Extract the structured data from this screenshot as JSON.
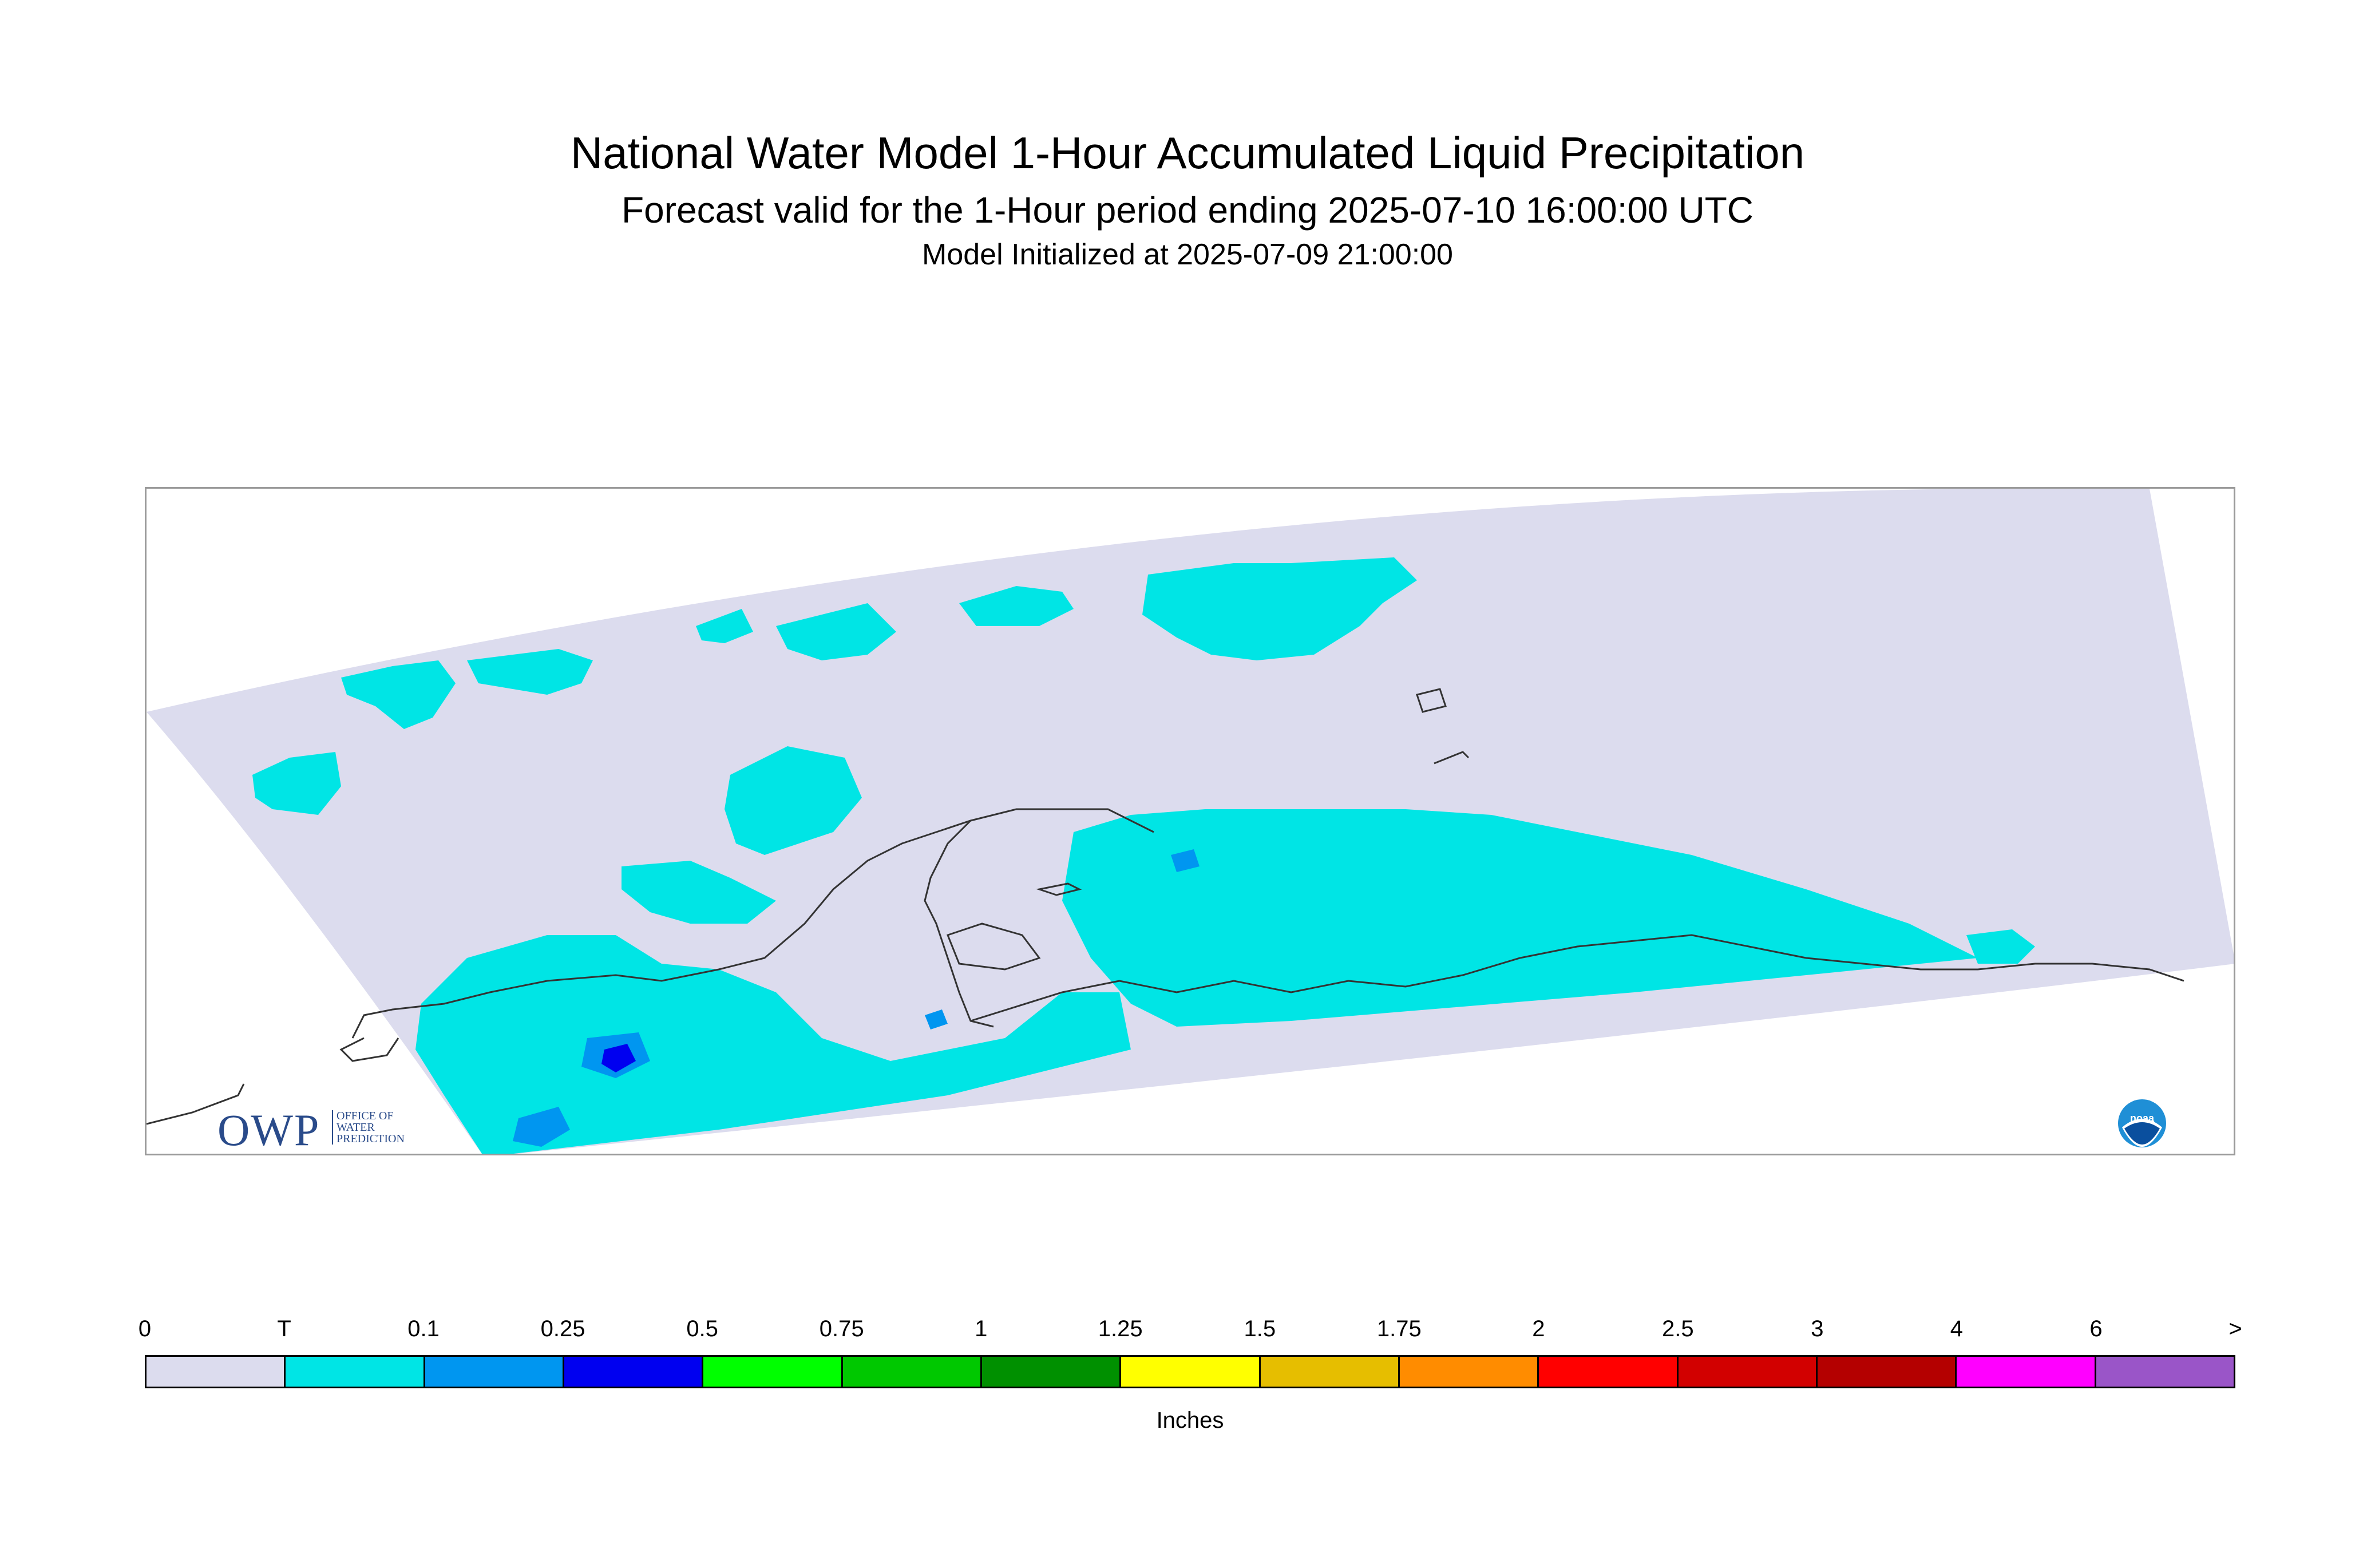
{
  "header": {
    "title": "National Water Model 1-Hour Accumulated Liquid Precipitation",
    "subtitle": "Forecast valid for the 1-Hour period ending 2025-07-10 16:00:00 UTC",
    "init_line": "Model Initialized at 2025-07-09 21:00:00"
  },
  "logos": {
    "owp": {
      "mark": "OWP",
      "lines": [
        "OFFICE OF",
        "WATER",
        "PREDICTION"
      ],
      "color": "#2a4b8a"
    },
    "noaa": {
      "mark": "noaa",
      "icon": "noaa-seagull-icon",
      "color": "#1f8fd6"
    }
  },
  "map": {
    "domain_color": "#dcdcee",
    "precip_colors": {
      "trace": "#00e5e5",
      "light": "#0096f0",
      "moderate": "#0000f0"
    },
    "coast_color": "#333333"
  },
  "legend": {
    "units": "Inches",
    "ticks": [
      "0",
      "T",
      "0.1",
      "0.25",
      "0.5",
      "0.75",
      "1",
      "1.25",
      "1.5",
      "1.75",
      "2",
      "2.5",
      "3",
      "4",
      "6",
      ">"
    ],
    "colors": [
      "#dcdcee",
      "#00e5e5",
      "#0096f0",
      "#0000f0",
      "#00ff00",
      "#00c800",
      "#009000",
      "#ffff00",
      "#e6be00",
      "#ff8c00",
      "#ff0000",
      "#d20000",
      "#b40000",
      "#ff00ff",
      "#9a55c8"
    ]
  }
}
